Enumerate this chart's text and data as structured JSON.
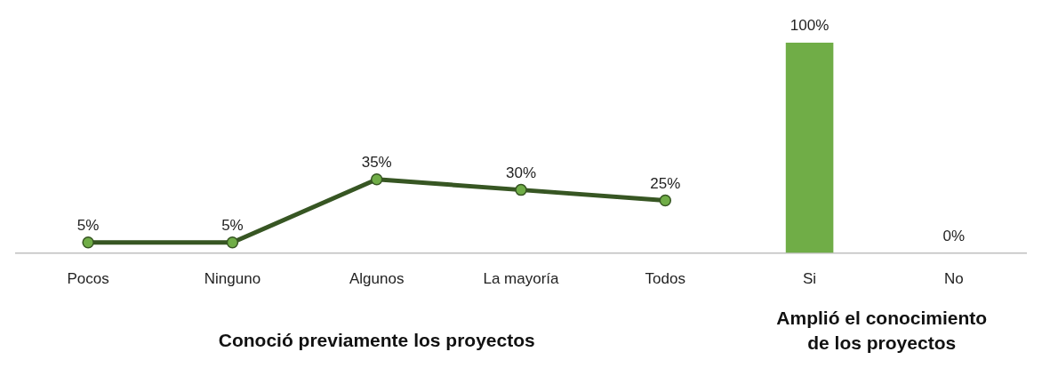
{
  "chart_data": {
    "type": "line",
    "categories": [
      "Pocos",
      "Ninguno",
      "Algunos",
      "La mayoría",
      "Todos",
      "Si",
      "No"
    ],
    "series": [
      {
        "color": "#375623",
        "values": [
          5,
          5,
          35,
          30,
          25,
          null,
          null
        ],
        "value_labels": [
          "5%",
          "5%",
          "35%",
          "30%",
          "25%",
          null,
          null
        ]
      },
      {
        "type": "bar",
        "color": "#70ad47",
        "values": [
          null,
          null,
          null,
          null,
          null,
          100,
          0
        ],
        "value_labels": [
          null,
          null,
          null,
          null,
          null,
          "100%",
          "0%"
        ]
      }
    ],
    "marker": "circle",
    "line_style": "solid",
    "grid": false,
    "legend": false,
    "annotations": [
      "Conoció previamente los proyectos",
      "Amplió el conocimiento de los proyectos"
    ]
  }
}
